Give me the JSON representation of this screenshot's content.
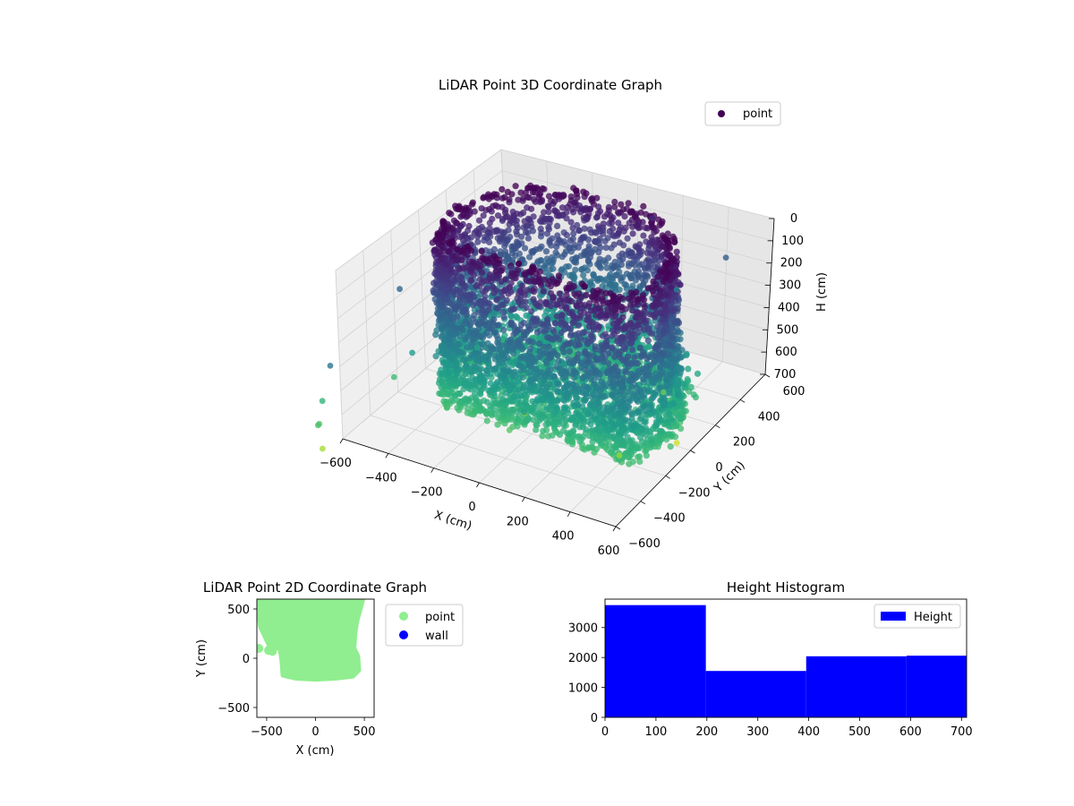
{
  "chart_data": [
    {
      "type": "scatter3d",
      "title": "LiDAR Point 3D Coordinate Graph",
      "xlabel": "X (cm)",
      "ylabel": "Y (cm)",
      "zlabel": "H (cm)",
      "xlim": [
        -600,
        600
      ],
      "ylim": [
        -600,
        600
      ],
      "zlim": [
        700,
        0
      ],
      "x_ticks": [
        -600,
        -400,
        -200,
        0,
        200,
        400,
        600
      ],
      "y_ticks": [
        -600,
        -400,
        -200,
        0,
        200,
        400,
        600
      ],
      "z_ticks": [
        0,
        100,
        200,
        300,
        400,
        500,
        600,
        700
      ],
      "z_inverted": true,
      "grid": true,
      "legend": {
        "placement": "top-right",
        "entries": [
          "point"
        ]
      },
      "colormap": "viridis",
      "series": [
        {
          "name": "point",
          "color_by": "height",
          "description_points": [
            {
              "x": -160,
              "y": -60,
              "z": 120
            },
            {
              "x": -40,
              "y": -200,
              "z": 620
            },
            {
              "x": -270,
              "y": -150,
              "z": 440
            },
            {
              "x": 390,
              "y": 580,
              "z": 220
            },
            {
              "x": 360,
              "y": -300,
              "z": 300
            },
            {
              "x": 480,
              "y": 80,
              "z": 250
            },
            {
              "x": -150,
              "y": 420,
              "z": 90
            },
            {
              "x": 120,
              "y": 500,
              "z": 100
            },
            {
              "x": 260,
              "y": 430,
              "z": 320
            },
            {
              "x": -560,
              "y": -220,
              "z": 250
            },
            {
              "x": -440,
              "y": -340,
              "z": 420
            },
            {
              "x": -500,
              "y": -380,
              "z": 520
            },
            {
              "x": 150,
              "y": -500,
              "z": 410
            },
            {
              "x": 30,
              "y": -420,
              "z": 560
            },
            {
              "x": 400,
              "y": -240,
              "z": 640
            },
            {
              "x": -620,
              "y": -700,
              "z": 500
            },
            {
              "x": -600,
              "y": -760,
              "z": 560
            },
            {
              "x": -580,
              "y": -800,
              "z": 540
            },
            {
              "x": -590,
              "y": -760,
              "z": 660
            },
            {
              "x": -540,
              "y": -760,
              "z": 300
            },
            {
              "x": 480,
              "y": 40,
              "z": 700
            },
            {
              "x": 360,
              "y": 150,
              "z": 580
            }
          ]
        }
      ]
    },
    {
      "type": "scatter",
      "title": "LiDAR Point 2D Coordinate Graph",
      "xlabel": "X (cm)",
      "ylabel": "Y (cm)",
      "xlim": [
        -600,
        600
      ],
      "ylim": [
        -600,
        600
      ],
      "x_ticks": [
        -500,
        0,
        500
      ],
      "y_ticks": [
        -500,
        0,
        500
      ],
      "legend": {
        "placement": "outside-right",
        "entries": [
          "point",
          "wall"
        ]
      },
      "series": [
        {
          "name": "point",
          "color": "#90ee90",
          "outline": [
            [
              -590,
              600
            ],
            [
              480,
              600
            ],
            [
              460,
              520
            ],
            [
              420,
              380
            ],
            [
              400,
              250
            ],
            [
              390,
              100
            ],
            [
              430,
              20
            ],
            [
              440,
              -120
            ],
            [
              380,
              -180
            ],
            [
              200,
              -200
            ],
            [
              0,
              -210
            ],
            [
              -200,
              -200
            ],
            [
              -330,
              -170
            ],
            [
              -340,
              -30
            ],
            [
              -360,
              100
            ],
            [
              -470,
              130
            ],
            [
              -560,
              320
            ],
            [
              -580,
              480
            ],
            [
              -590,
              600
            ]
          ],
          "extra_points": [
            [
              -580,
              100
            ],
            [
              -480,
              80
            ],
            [
              -440,
              70
            ]
          ]
        },
        {
          "name": "wall",
          "color": "#0000ff",
          "points": []
        }
      ]
    },
    {
      "type": "histogram",
      "title": "Height Histogram",
      "xlim": [
        0,
        710
      ],
      "ylim": [
        0,
        3950
      ],
      "x_ticks": [
        0,
        100,
        200,
        300,
        400,
        500,
        600,
        700
      ],
      "y_ticks": [
        0,
        1000,
        2000,
        3000
      ],
      "legend": {
        "placement": "top-right",
        "entries": [
          "Height"
        ]
      },
      "series": [
        {
          "name": "Height",
          "color": "#0000ff",
          "bins": [
            {
              "x0": 0,
              "x1": 198,
              "count": 3750
            },
            {
              "x0": 198,
              "x1": 395,
              "count": 1550
            },
            {
              "x0": 395,
              "x1": 592,
              "count": 2040
            },
            {
              "x0": 592,
              "x1": 710,
              "count": 2060
            }
          ]
        }
      ]
    }
  ]
}
